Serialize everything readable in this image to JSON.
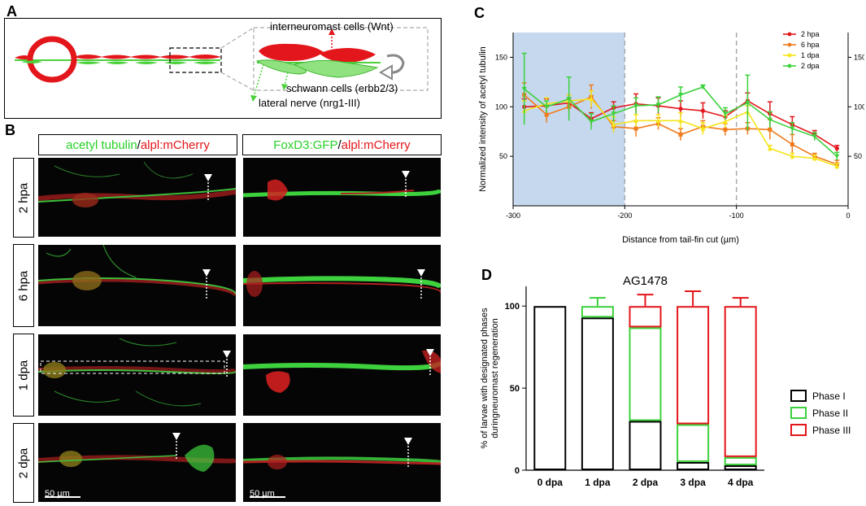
{
  "panel_a": {
    "label": "A",
    "interneuromast_label": "interneuromast cells (Wnt)",
    "schwann_label": "schwann cells (erbb2/3)",
    "nerve_label": "lateral nerve (nrg1-III)",
    "colors": {
      "red": "#e3161b",
      "green": "#4cd13c"
    }
  },
  "panel_b": {
    "label": "B",
    "col_headers": [
      {
        "green": "acetyl tubulin",
        "sep": " / ",
        "red": "alpl:mCherry"
      },
      {
        "green": "FoxD3:GFP",
        "sep": " / ",
        "red": "alpl:mCherry"
      }
    ],
    "rows": [
      "2 hpa",
      "6 hpa",
      "1 dpa",
      "2 dpa"
    ],
    "scale_bar": "50 µm"
  },
  "panel_c": {
    "label": "C",
    "chart_data": {
      "type": "line",
      "ylabel": "Normalized intensity of acetyl tubulin",
      "xlabel": "Distance from tail-fin cut (µm)",
      "xlim": [
        -300,
        0
      ],
      "ylim": [
        0,
        175
      ],
      "x_ticks": [
        "-300",
        "-200",
        "-100",
        "0"
      ],
      "y_ticks": [
        "50",
        "100",
        "150"
      ],
      "shaded_range": [
        -300,
        -200
      ],
      "dashed_lines": [
        -200,
        -100
      ],
      "x": [
        -290,
        -270,
        -250,
        -230,
        -210,
        -190,
        -170,
        -150,
        -130,
        -110,
        -90,
        -70,
        -50,
        -30,
        -10
      ],
      "series": [
        {
          "name": "2 hpa",
          "color": "#e3161b",
          "values": [
            100,
            101,
            104,
            88,
            99,
            103,
            101,
            98,
            96,
            90,
            106,
            93,
            82,
            72,
            58
          ],
          "errors": [
            8,
            7,
            8,
            6,
            6,
            10,
            8,
            8,
            8,
            6,
            8,
            12,
            8,
            4,
            3
          ]
        },
        {
          "name": "6 hpa",
          "color": "#ef7b1c",
          "values": [
            112,
            92,
            100,
            110,
            80,
            78,
            83,
            72,
            80,
            77,
            78,
            77,
            62,
            50,
            42
          ],
          "errors": [
            12,
            8,
            8,
            12,
            6,
            8,
            6,
            6,
            6,
            6,
            6,
            10,
            10,
            3,
            4
          ]
        },
        {
          "name": "1 dpa",
          "color": "#f5e51c",
          "values": [
            96,
            103,
            106,
            108,
            82,
            86,
            86,
            86,
            78,
            85,
            95,
            58,
            50,
            48,
            40
          ],
          "errors": [
            10,
            6,
            6,
            8,
            8,
            6,
            6,
            8,
            6,
            6,
            6,
            3,
            3,
            3,
            3
          ]
        },
        {
          "name": "2 dpa",
          "color": "#3cd13c",
          "values": [
            118,
            100,
            108,
            85,
            93,
            101,
            102,
            112,
            120,
            93,
            104,
            87,
            78,
            70,
            50
          ],
          "errors": [
            36,
            6,
            22,
            8,
            8,
            8,
            8,
            8,
            2,
            6,
            28,
            8,
            6,
            4,
            4
          ]
        }
      ]
    }
  },
  "panel_d": {
    "label": "D",
    "chart_data": {
      "type": "bar",
      "title": "AG1478",
      "ylabel": "% of larvae with designated phases during neuromast regeneration",
      "ylabel_line1": "% of larvae with designated phases",
      "ylabel_line2": "duringneuromast regeneration",
      "categories": [
        "0 dpa",
        "1 dpa",
        "2 dpa",
        "3 dpa",
        "4 dpa"
      ],
      "ylim": [
        0,
        112
      ],
      "y_ticks": [
        "0",
        "50",
        "100"
      ],
      "series": [
        {
          "name": "Phase I",
          "color": "#000000",
          "values": [
            100,
            93,
            30,
            5,
            3
          ],
          "errors": [
            0,
            5,
            9,
            3,
            2
          ]
        },
        {
          "name": "Phase II",
          "color": "#3cd13c",
          "values": [
            0,
            7,
            57,
            23,
            5
          ],
          "errors": [
            0,
            5,
            2,
            8,
            4
          ]
        },
        {
          "name": "Phase III",
          "color": "#e3161b",
          "values": [
            0,
            0,
            13,
            72,
            92
          ],
          "errors": [
            0,
            0,
            7,
            9,
            5
          ]
        }
      ]
    }
  }
}
